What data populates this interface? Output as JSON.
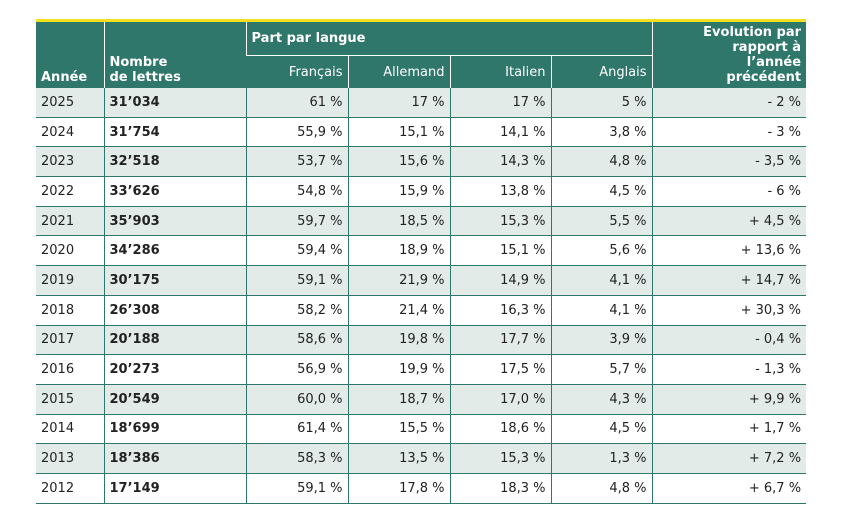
{
  "header": {
    "year": "Année",
    "letters": "Nombre de lettres",
    "share": "Part par langue",
    "languages": [
      "Français",
      "Allemand",
      "Italien",
      "Anglais"
    ],
    "evolution": "Evolution par rapport à l’année précédent"
  },
  "table": {
    "rows": [
      [
        "2025",
        "31’034",
        "61 %",
        "17 %",
        "17 %",
        "5 %",
        "- 2 %"
      ],
      [
        "2024",
        "31’754",
        "55,9 %",
        "15,1 %",
        "14,1 %",
        "3,8 %",
        "- 3 %"
      ],
      [
        "2023",
        "32’518",
        "53,7 %",
        "15,6 %",
        "14,3 %",
        "4,8 %",
        "- 3,5 %"
      ],
      [
        "2022",
        "33’626",
        "54,8 %",
        "15,9 %",
        "13,8 %",
        "4,5 %",
        "- 6 %"
      ],
      [
        "2021",
        "35’903",
        "59,7 %",
        "18,5 %",
        "15,3 %",
        "5,5 %",
        "+ 4,5 %"
      ],
      [
        "2020",
        "34’286",
        "59,4 %",
        "18,9 %",
        "15,1 %",
        "5,6 %",
        "+ 13,6 %"
      ],
      [
        "2019",
        "30’175",
        "59,1 %",
        "21,9 %",
        "14,9 %",
        "4,1 %",
        "+ 14,7 %"
      ],
      [
        "2018",
        "26’308",
        "58,2 %",
        "21,4 %",
        "16,3 %",
        "4,1 %",
        "+ 30,3 %"
      ],
      [
        "2017",
        "20’188",
        "58,6 %",
        "19,8 %",
        "17,7 %",
        "3,9 %",
        "- 0,4 %"
      ],
      [
        "2016",
        "20’273",
        "56,9 %",
        "19,9 %",
        "17,5 %",
        "5,7 %",
        "- 1,3 %"
      ],
      [
        "2015",
        "20’549",
        "60,0 %",
        "18,7 %",
        "17,0 %",
        "4,3 %",
        "+ 9,9 %"
      ],
      [
        "2014",
        "18’699",
        "61,4 %",
        "15,5 %",
        "18,6 %",
        "4,5 %",
        "+ 1,7 %"
      ],
      [
        "2013",
        "18’386",
        "58,3 %",
        "13,5 %",
        "15,3 %",
        "1,3 %",
        "+ 7,2 %"
      ],
      [
        "2012",
        "17’149",
        "59,1 %",
        "17,8 %",
        "18,3 %",
        "4,8 %",
        "+ 6,7 %"
      ]
    ]
  }
}
